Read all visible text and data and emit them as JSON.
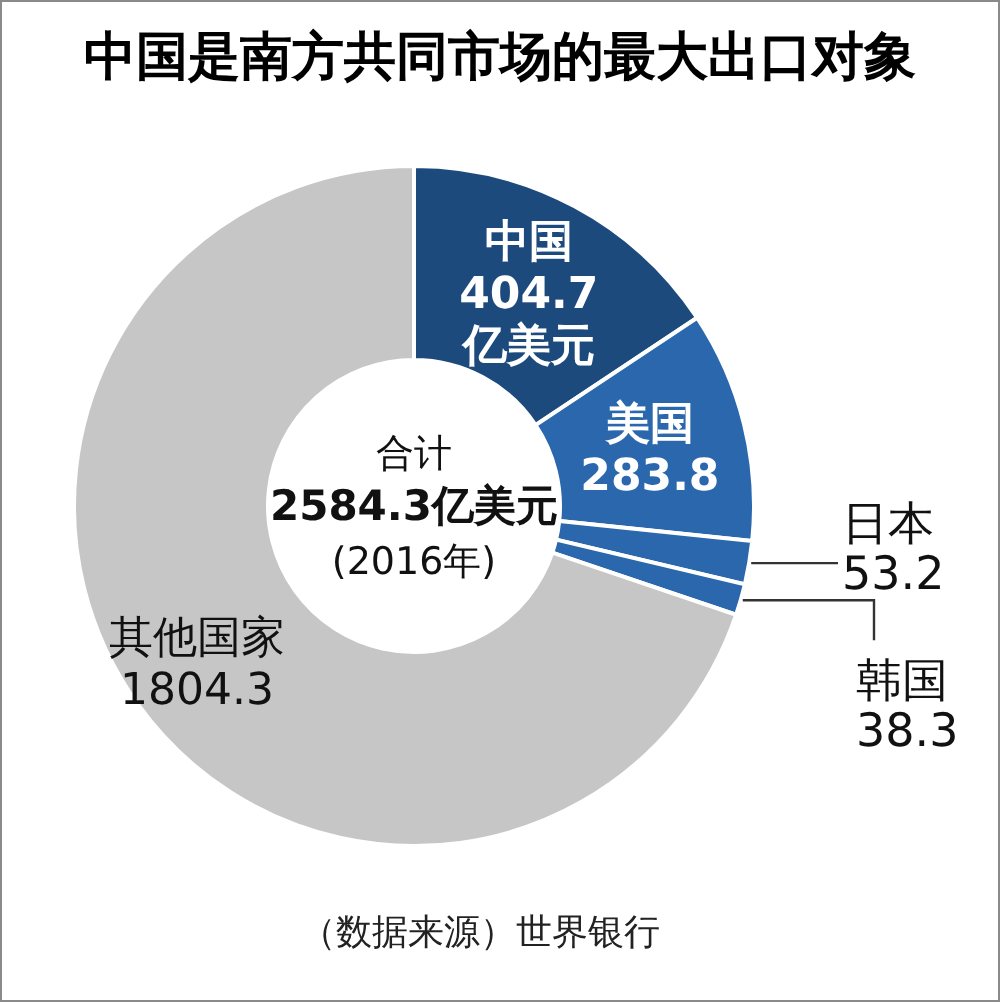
{
  "chart_data": {
    "type": "donut",
    "title": "中国是南方共同市场的最大出口对象",
    "categories": [
      "中国",
      "美国",
      "日本",
      "韩国",
      "其他国家"
    ],
    "values": [
      404.7,
      283.8,
      53.2,
      38.3,
      1804.3
    ],
    "colors": [
      "#1d4a7d",
      "#2a67ad",
      "#2a67ad",
      "#2a67ad",
      "#c6c6c6"
    ],
    "value_labels": [
      "404.7\n亿美元",
      "283.8",
      "53.2",
      "38.3",
      "1804.3"
    ],
    "annotations": [
      "合计\n2584.3亿美元\n(2016年)",
      "（数据来源）世界银行"
    ]
  }
}
